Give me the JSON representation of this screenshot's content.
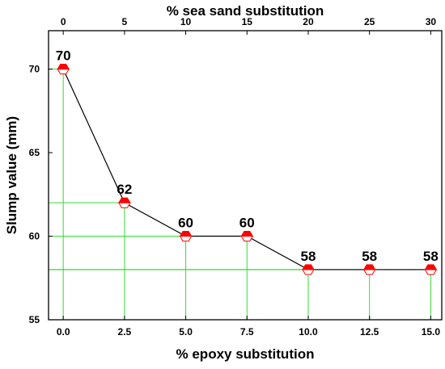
{
  "chart_data": {
    "type": "line",
    "title": "",
    "xlabel": "% epoxy substitution",
    "x2label": "% sea sand substitution",
    "ylabel": "Slump value (mm)",
    "x": [
      0.0,
      2.5,
      5.0,
      7.5,
      10.0,
      12.5,
      15.0
    ],
    "x_tick_labels": [
      "0.0",
      "2.5",
      "5.0",
      "7.5",
      "10.0",
      "12.5",
      "15.0"
    ],
    "x2_tick_values": [
      0,
      5,
      10,
      15,
      20,
      25,
      30
    ],
    "x2_tick_labels": [
      "0",
      "5",
      "10",
      "15",
      "20",
      "25",
      "30"
    ],
    "y_ticks": [
      55,
      60,
      65,
      70
    ],
    "y_tick_labels": [
      "55",
      "60",
      "65",
      "70"
    ],
    "series": [
      {
        "values": [
          70,
          62,
          60,
          60,
          58,
          58,
          58
        ],
        "data_labels": [
          "70",
          "62",
          "60",
          "60",
          "58",
          "58",
          "58"
        ]
      }
    ],
    "xlim": [
      -0.6,
      15.45
    ],
    "x2lim": [
      -1.2,
      30.9
    ],
    "ylim": [
      55,
      72.3
    ],
    "grid": false,
    "colors": {
      "line": "#000000",
      "marker_top": "#ff0000",
      "marker_bottom": "#ffffff",
      "guide": "#33dd33",
      "axis": "#000000"
    },
    "marker": "hexagon"
  }
}
